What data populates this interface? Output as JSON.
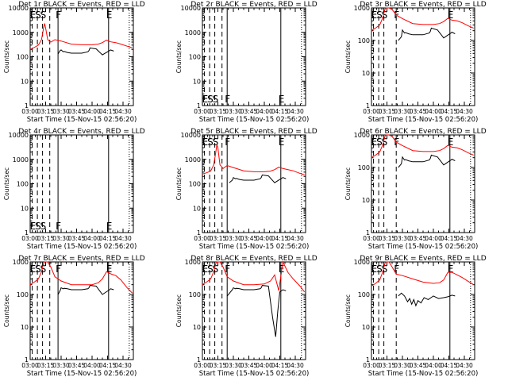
{
  "figure": {
    "xticks": [
      "03:00",
      "03:15",
      "03:30",
      "03:45",
      "04:00",
      "04:15",
      "04:30"
    ],
    "xlabel": "Start Time (15-Nov-15 02:56:20)",
    "ylabel": "Counts/sec",
    "title_suffix": "BLACK = Events, RED = LLD",
    "event_labels": {
      "E": "E",
      "S": "S",
      "F": "F"
    }
  },
  "colors": {
    "events": "#000000",
    "lld": "#ff0000",
    "axes": "#000000"
  },
  "chart_data": [
    {
      "type": "line",
      "detector": "Det 1r",
      "title": "Det 1r BLACK = Events, RED = LLD",
      "xlabel": "Start Time (15-Nov-15 02:56:20)",
      "ylabel": "Counts/sec",
      "yscale": "log",
      "ylim": [
        1,
        10000
      ],
      "yticks": [
        "1",
        "10",
        "100",
        "1000",
        "10000"
      ],
      "xlim": [
        "03:00",
        "04:40"
      ],
      "markers": {
        "dashed": [
          "03:02",
          "03:07",
          "03:12",
          "03:19"
        ],
        "solid": [
          "03:27",
          "04:16"
        ],
        "dotted": [
          "04:36"
        ]
      },
      "series": [
        {
          "name": "LLD",
          "color": "red",
          "x": [
            "03:00",
            "03:04",
            "03:08",
            "03:11",
            "03:13",
            "03:14",
            "03:15",
            "03:17",
            "03:20",
            "03:24",
            "03:30",
            "03:40",
            "03:50",
            "04:00",
            "04:06",
            "04:10",
            "04:14",
            "04:18",
            "04:23",
            "04:28",
            "04:34",
            "04:39"
          ],
          "y": [
            200,
            240,
            300,
            500,
            1500,
            2300,
            1500,
            500,
            400,
            500,
            440,
            330,
            310,
            310,
            330,
            380,
            480,
            410,
            380,
            330,
            270,
            230
          ]
        },
        {
          "name": "Events",
          "color": "black",
          "x": [
            "03:27",
            "03:29",
            "03:30",
            "03:32",
            "03:33",
            "03:36",
            "03:40",
            "03:50",
            "03:56",
            "03:57",
            "03:58",
            "04:04",
            "04:10",
            "04:17",
            "04:18",
            "04:21"
          ],
          "y": [
            130,
            180,
            190,
            160,
            165,
            150,
            140,
            140,
            160,
            180,
            230,
            210,
            120,
            180,
            190,
            170
          ]
        }
      ]
    },
    {
      "type": "line",
      "detector": "Det 2r",
      "title": "Det 2r BLACK = Events, RED = LLD",
      "xlabel": "Start Time (15-Nov-15 02:56:20)",
      "ylabel": "Counts/sec",
      "yscale": "log",
      "ylim": [
        1,
        10000
      ],
      "yticks": [
        "1",
        "10",
        "100",
        "1000",
        "10000"
      ],
      "xlim": [
        "03:00",
        "04:40"
      ],
      "markers": {
        "dashed": [
          "03:02",
          "03:07",
          "03:12",
          "03:19"
        ],
        "solid": [
          "03:24",
          "04:16"
        ],
        "dotted": [
          "04:36"
        ]
      },
      "series": []
    },
    {
      "type": "line",
      "detector": "Det 3r",
      "title": "Det 3r BLACK = Events, RED = LLD",
      "xlabel": "Start Time (15-Nov-15 02:56:20)",
      "ylabel": "Counts/sec",
      "yscale": "log",
      "ylim": [
        1,
        1000
      ],
      "yticks": [
        "1",
        "10",
        "100",
        "1000"
      ],
      "xlim": [
        "03:00",
        "04:40"
      ],
      "markers": {
        "dashed": [
          "03:02",
          "03:07",
          "03:12",
          "03:24"
        ],
        "solid": [
          "04:16"
        ],
        "dotted": [
          "04:36"
        ]
      },
      "series": [
        {
          "name": "LLD",
          "color": "red",
          "x": [
            "03:00",
            "03:04",
            "03:08",
            "03:11",
            "03:13",
            "03:14",
            "03:15",
            "03:17",
            "03:20",
            "03:24",
            "03:30",
            "03:40",
            "03:50",
            "04:00",
            "04:06",
            "04:10",
            "04:14",
            "04:18",
            "04:23",
            "04:28",
            "04:34",
            "04:39"
          ],
          "y": [
            200,
            240,
            300,
            500,
            900,
            1000,
            1000,
            1000,
            900,
            600,
            470,
            330,
            310,
            310,
            330,
            380,
            480,
            420,
            400,
            350,
            280,
            240
          ]
        },
        {
          "name": "Events",
          "color": "black",
          "x": [
            "03:26",
            "03:29",
            "03:30",
            "03:32",
            "03:33",
            "03:36",
            "03:40",
            "03:50",
            "03:56",
            "03:57",
            "03:58",
            "04:04",
            "04:10",
            "04:17",
            "04:18",
            "04:21"
          ],
          "y": [
            100,
            130,
            210,
            170,
            175,
            160,
            150,
            150,
            170,
            190,
            240,
            210,
            120,
            170,
            180,
            160
          ]
        }
      ]
    },
    {
      "type": "line",
      "detector": "Det 4r",
      "title": "Det 4r BLACK = Events, RED = LLD",
      "xlabel": "Start Time (15-Nov-15 02:56:20)",
      "ylabel": "Counts/sec",
      "yscale": "log",
      "ylim": [
        1,
        10000
      ],
      "yticks": [
        "1",
        "10",
        "100",
        "1000",
        "10000"
      ],
      "xlim": [
        "03:00",
        "04:40"
      ],
      "markers": {
        "dashed": [
          "03:02",
          "03:07",
          "03:12",
          "03:19"
        ],
        "solid": [
          "03:27",
          "04:16"
        ],
        "dotted": [
          "04:36"
        ]
      },
      "series": []
    },
    {
      "type": "line",
      "detector": "Det 5r",
      "title": "Det 5r BLACK = Events, RED = LLD",
      "xlabel": "Start Time (15-Nov-15 02:56:20)",
      "ylabel": "Counts/sec",
      "yscale": "log",
      "ylim": [
        1,
        10000
      ],
      "yticks": [
        "1",
        "10",
        "100",
        "1000",
        "10000"
      ],
      "xlim": [
        "03:00",
        "04:40"
      ],
      "markers": {
        "dashed": [
          "03:02",
          "03:07",
          "03:12",
          "03:19"
        ],
        "solid": [
          "03:24",
          "04:16"
        ],
        "dotted": [
          "04:36"
        ]
      },
      "series": [
        {
          "name": "LLD",
          "color": "red",
          "x": [
            "03:00",
            "03:04",
            "03:08",
            "03:11",
            "03:13",
            "03:14",
            "03:15",
            "03:17",
            "03:20",
            "03:24",
            "03:30",
            "03:40",
            "03:50",
            "04:00",
            "04:06",
            "04:10",
            "04:14",
            "04:18",
            "04:23",
            "04:28",
            "04:34",
            "04:39"
          ],
          "y": [
            250,
            280,
            330,
            600,
            2000,
            4000,
            3000,
            600,
            420,
            560,
            460,
            340,
            310,
            310,
            330,
            380,
            480,
            420,
            380,
            340,
            270,
            230
          ]
        },
        {
          "name": "Events",
          "color": "black",
          "x": [
            "03:26",
            "03:29",
            "03:30",
            "03:32",
            "03:33",
            "03:36",
            "03:40",
            "03:50",
            "03:56",
            "03:57",
            "03:58",
            "04:04",
            "04:10",
            "04:17",
            "04:18",
            "04:21"
          ],
          "y": [
            110,
            140,
            180,
            160,
            165,
            150,
            140,
            140,
            160,
            180,
            230,
            210,
            110,
            170,
            180,
            160
          ]
        }
      ]
    },
    {
      "type": "line",
      "detector": "Det 6r",
      "title": "Det 6r BLACK = Events, RED = LLD",
      "xlabel": "Start Time (15-Nov-15 02:56:20)",
      "ylabel": "Counts/sec",
      "yscale": "log",
      "ylim": [
        1,
        1000
      ],
      "yticks": [
        "1",
        "10",
        "100",
        "1000"
      ],
      "xlim": [
        "03:00",
        "04:40"
      ],
      "markers": {
        "dashed": [
          "03:02",
          "03:07",
          "03:12",
          "03:24"
        ],
        "solid": [
          "04:16"
        ],
        "dotted": [
          "04:36"
        ]
      },
      "series": [
        {
          "name": "LLD",
          "color": "red",
          "x": [
            "03:00",
            "03:04",
            "03:08",
            "03:11",
            "03:13",
            "03:14",
            "03:15",
            "03:17",
            "03:20",
            "03:24",
            "03:30",
            "03:40",
            "03:50",
            "04:00",
            "04:06",
            "04:10",
            "04:14",
            "04:18",
            "04:23",
            "04:28",
            "04:34",
            "04:39"
          ],
          "y": [
            200,
            240,
            300,
            500,
            900,
            1000,
            1000,
            1000,
            900,
            600,
            470,
            330,
            310,
            310,
            330,
            380,
            480,
            420,
            400,
            350,
            280,
            240
          ]
        },
        {
          "name": "Events",
          "color": "black",
          "x": [
            "03:26",
            "03:29",
            "03:30",
            "03:32",
            "03:33",
            "03:36",
            "03:40",
            "03:50",
            "03:56",
            "03:57",
            "03:58",
            "04:04",
            "04:10",
            "04:17",
            "04:18",
            "04:21"
          ],
          "y": [
            100,
            130,
            210,
            170,
            175,
            160,
            150,
            150,
            170,
            190,
            240,
            210,
            120,
            170,
            180,
            160
          ]
        }
      ]
    },
    {
      "type": "line",
      "detector": "Det 7r",
      "title": "Det 7r BLACK = Events, RED = LLD",
      "xlabel": "Start Time (15-Nov-15 02:56:20)",
      "ylabel": "Counts/sec",
      "yscale": "log",
      "ylim": [
        1,
        1000
      ],
      "yticks": [
        "1",
        "10",
        "100",
        "1000"
      ],
      "xlim": [
        "03:00",
        "04:40"
      ],
      "markers": {
        "dashed": [
          "03:02",
          "03:07",
          "03:12",
          "03:19"
        ],
        "solid": [
          "03:27",
          "04:16"
        ],
        "dotted": [
          "04:36"
        ]
      },
      "series": [
        {
          "name": "LLD",
          "color": "red",
          "x": [
            "03:00",
            "03:04",
            "03:08",
            "03:11",
            "03:13",
            "03:14",
            "03:15",
            "03:17",
            "03:20",
            "03:24",
            "03:30",
            "03:40",
            "03:50",
            "04:00",
            "04:06",
            "04:10",
            "04:14",
            "04:18",
            "04:23",
            "04:28",
            "04:34",
            "04:39"
          ],
          "y": [
            200,
            240,
            300,
            500,
            900,
            1000,
            1000,
            1000,
            700,
            350,
            260,
            200,
            200,
            200,
            230,
            300,
            500,
            430,
            380,
            280,
            160,
            110
          ]
        },
        {
          "name": "Events",
          "color": "black",
          "x": [
            "03:27",
            "03:29",
            "03:30",
            "03:32",
            "03:33",
            "03:36",
            "03:40",
            "03:50",
            "03:56",
            "03:57",
            "03:58",
            "04:04",
            "04:10",
            "04:17",
            "04:18",
            "04:21"
          ],
          "y": [
            100,
            130,
            160,
            150,
            155,
            150,
            140,
            140,
            150,
            160,
            190,
            180,
            100,
            140,
            150,
            140
          ]
        }
      ]
    },
    {
      "type": "line",
      "detector": "Det 8r",
      "title": "Det 8r BLACK = Events, RED = LLD",
      "xlabel": "Start Time (15-Nov-15 02:56:20)",
      "ylabel": "Counts/sec",
      "yscale": "log",
      "ylim": [
        1,
        1000
      ],
      "yticks": [
        "1",
        "10",
        "100",
        "1000"
      ],
      "xlim": [
        "03:00",
        "04:40"
      ],
      "markers": {
        "dashed": [
          "03:02",
          "03:07",
          "03:12",
          "03:19"
        ],
        "solid": [
          "03:24",
          "04:16"
        ],
        "dotted": [
          "04:36"
        ]
      },
      "series": [
        {
          "name": "LLD",
          "color": "red",
          "x": [
            "03:00",
            "03:04",
            "03:08",
            "03:11",
            "03:13",
            "03:14",
            "03:15",
            "03:17",
            "03:20",
            "03:24",
            "03:30",
            "03:40",
            "03:50",
            "04:00",
            "04:06",
            "04:10",
            "04:14",
            "04:18",
            "04:23",
            "04:28",
            "04:34",
            "04:39"
          ],
          "y": [
            200,
            240,
            300,
            500,
            900,
            1000,
            1000,
            1000,
            700,
            350,
            260,
            200,
            200,
            210,
            260,
            400,
            130,
            1000,
            470,
            300,
            190,
            120
          ]
        },
        {
          "name": "Events",
          "color": "black",
          "x": [
            "03:24",
            "03:29",
            "03:30",
            "03:32",
            "03:33",
            "03:36",
            "03:40",
            "03:50",
            "03:56",
            "03:57",
            "03:58",
            "04:04",
            "04:08",
            "04:11",
            "04:13",
            "04:15",
            "04:18",
            "04:21"
          ],
          "y": [
            90,
            140,
            160,
            150,
            155,
            150,
            140,
            140,
            150,
            160,
            190,
            180,
            20,
            5,
            30,
            120,
            140,
            130
          ]
        }
      ]
    },
    {
      "type": "line",
      "detector": "Det 9r",
      "title": "Det 9r BLACK = Events, RED = LLD",
      "xlabel": "Start Time (15-Nov-15 02:56:20)",
      "ylabel": "Counts/sec",
      "yscale": "log",
      "ylim": [
        1,
        1000
      ],
      "yticks": [
        "1",
        "10",
        "100",
        "1000"
      ],
      "xlim": [
        "03:00",
        "04:40"
      ],
      "markers": {
        "dashed": [
          "03:02",
          "03:07",
          "03:12",
          "03:24"
        ],
        "solid": [
          "04:16"
        ],
        "dotted": [
          "04:36"
        ]
      },
      "series": [
        {
          "name": "LLD",
          "color": "red",
          "x": [
            "03:00",
            "03:04",
            "03:08",
            "03:11",
            "03:13",
            "03:14",
            "03:15",
            "03:17",
            "03:20",
            "03:24",
            "03:30",
            "03:40",
            "03:50",
            "04:00",
            "04:06",
            "04:10",
            "04:14",
            "04:18",
            "04:23",
            "04:28",
            "04:34",
            "04:39"
          ],
          "y": [
            180,
            220,
            280,
            500,
            900,
            1000,
            1000,
            1000,
            700,
            420,
            380,
            300,
            240,
            220,
            230,
            280,
            480,
            480,
            400,
            330,
            250,
            200
          ]
        },
        {
          "name": "Events",
          "color": "black",
          "x": [
            "03:26",
            "03:29",
            "03:32",
            "03:35",
            "03:37",
            "03:39",
            "03:41",
            "03:43",
            "03:45",
            "03:48",
            "03:51",
            "03:55",
            "04:00",
            "04:05",
            "04:10",
            "04:14",
            "04:18",
            "04:21"
          ],
          "y": [
            90,
            110,
            90,
            60,
            75,
            50,
            70,
            45,
            65,
            55,
            80,
            70,
            90,
            75,
            80,
            85,
            95,
            90
          ]
        }
      ]
    }
  ]
}
